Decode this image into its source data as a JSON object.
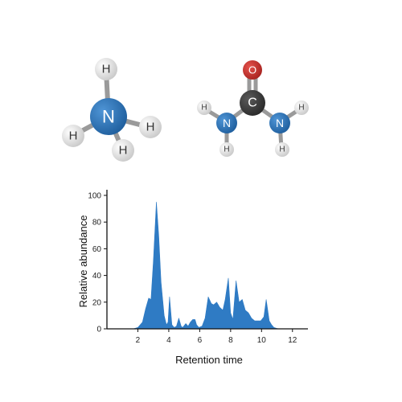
{
  "molecules": {
    "ammonia": {
      "atoms": [
        {
          "element": "N",
          "label": "N",
          "color": "#2a73b8"
        },
        {
          "element": "H",
          "label": "H",
          "color": "#e2e2e2"
        },
        {
          "element": "H",
          "label": "H",
          "color": "#e2e2e2"
        },
        {
          "element": "H",
          "label": "H",
          "color": "#e2e2e2"
        },
        {
          "element": "H",
          "label": "H",
          "color": "#e2e2e2"
        }
      ]
    },
    "urea": {
      "atoms": [
        {
          "element": "O",
          "label": "O",
          "color": "#c8302c"
        },
        {
          "element": "C",
          "label": "C",
          "color": "#3b3b3b"
        },
        {
          "element": "N",
          "label": "N",
          "color": "#2a73b8"
        },
        {
          "element": "N",
          "label": "N",
          "color": "#2a73b8"
        },
        {
          "element": "H",
          "label": "H",
          "color": "#e2e2e2"
        },
        {
          "element": "H",
          "label": "H",
          "color": "#e2e2e2"
        },
        {
          "element": "H",
          "label": "H",
          "color": "#e2e2e2"
        },
        {
          "element": "H",
          "label": "H",
          "color": "#e2e2e2"
        }
      ]
    }
  },
  "chart_data": {
    "type": "area",
    "title": "",
    "xlabel": "Retention time",
    "ylabel": "Relative abundance",
    "xlim": [
      0,
      13
    ],
    "ylim": [
      0,
      100
    ],
    "xticks": [
      "2",
      "4",
      "6",
      "8",
      "10",
      "12"
    ],
    "yticks": [
      "0",
      "20",
      "40",
      "60",
      "80",
      "100"
    ],
    "grid": false,
    "legend": "none",
    "fill_color": "#2f7bc4",
    "series": [
      {
        "x": [
          1.7,
          2.0,
          2.3,
          2.5,
          2.7,
          2.85,
          3.0,
          3.2,
          3.35,
          3.5,
          3.7,
          3.85,
          3.95,
          4.05,
          4.2,
          4.35,
          4.5,
          4.65,
          4.8,
          4.9,
          5.1,
          5.25,
          5.4,
          5.55,
          5.7,
          5.8,
          5.95,
          6.15,
          6.35,
          6.55,
          6.75,
          6.9,
          7.1,
          7.3,
          7.5,
          7.65,
          7.85,
          8.0,
          8.15,
          8.35,
          8.55,
          8.75,
          8.95,
          9.15,
          9.35,
          9.55,
          9.75,
          9.95,
          10.15,
          10.3,
          10.5,
          10.65,
          10.8,
          11.0,
          11.2
        ],
        "y": [
          0,
          1,
          5,
          15,
          23,
          22,
          50,
          95,
          70,
          35,
          10,
          3,
          5,
          24,
          3,
          1,
          2,
          8,
          2,
          1,
          4,
          2,
          5,
          7,
          7,
          3,
          1,
          2,
          8,
          24,
          19,
          18,
          20,
          16,
          14,
          22,
          38,
          12,
          7,
          36,
          20,
          22,
          14,
          12,
          8,
          6,
          6,
          6,
          9,
          22,
          6,
          3,
          1,
          0.3,
          0
        ]
      }
    ]
  }
}
